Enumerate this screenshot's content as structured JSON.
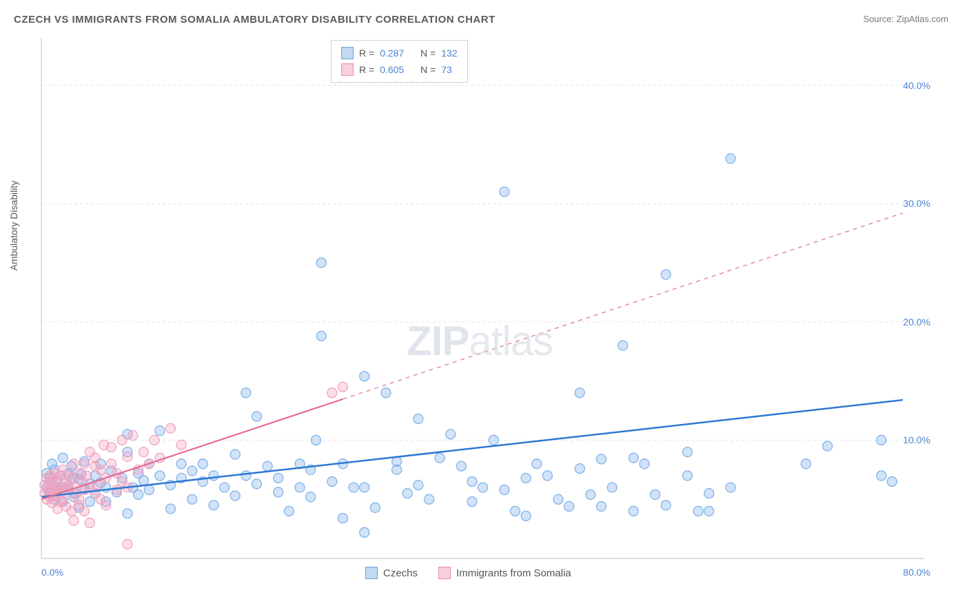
{
  "title": "CZECH VS IMMIGRANTS FROM SOMALIA AMBULATORY DISABILITY CORRELATION CHART",
  "source": "Source: ZipAtlas.com",
  "y_axis_label": "Ambulatory Disability",
  "watermark_bold": "ZIP",
  "watermark_rest": "atlas",
  "chart": {
    "type": "scatter",
    "background_color": "#ffffff",
    "grid_color": "#e3e3e3",
    "axis_color": "#cccccc",
    "xlim": [
      0,
      80
    ],
    "ylim": [
      0,
      44
    ],
    "x_tick_labels": [
      {
        "v": 0,
        "t": "0.0%"
      },
      {
        "v": 80,
        "t": "80.0%"
      }
    ],
    "y_tick_labels": [
      {
        "v": 10,
        "t": "10.0%"
      },
      {
        "v": 20,
        "t": "20.0%"
      },
      {
        "v": 30,
        "t": "30.0%"
      },
      {
        "v": 40,
        "t": "40.0%"
      }
    ],
    "y_grid_values": [
      10,
      20,
      30,
      40
    ],
    "tick_label_color": "#4a84d6",
    "tick_fontsize": 14,
    "marker_radius": 7,
    "marker_stroke_width": 1.2,
    "series": [
      {
        "name": "Czechs",
        "color_fill": "rgba(125,175,235,0.35)",
        "color_stroke": "#7aafe8",
        "trend_color": "#2e78d2",
        "trend_width": 2.5,
        "R": "0.287",
        "N": "132",
        "trend": {
          "x1": 0,
          "y1": 5.2,
          "x2": 80,
          "y2": 13.4,
          "dashed_after_x": null
        },
        "points": [
          [
            0.5,
            6.0
          ],
          [
            0.5,
            7.2
          ],
          [
            0.8,
            5.5
          ],
          [
            0.8,
            6.8
          ],
          [
            1.0,
            6.2
          ],
          [
            1.0,
            8.0
          ],
          [
            1.2,
            5.0
          ],
          [
            1.2,
            7.5
          ],
          [
            1.5,
            6.5
          ],
          [
            1.5,
            5.8
          ],
          [
            1.8,
            7.0
          ],
          [
            1.8,
            6.0
          ],
          [
            2.0,
            8.5
          ],
          [
            2.0,
            4.8
          ],
          [
            2.2,
            5.8
          ],
          [
            2.5,
            7.2
          ],
          [
            2.5,
            6.0
          ],
          [
            2.8,
            7.8
          ],
          [
            3.0,
            5.2
          ],
          [
            3.0,
            6.8
          ],
          [
            3.2,
            5.5
          ],
          [
            3.5,
            4.3
          ],
          [
            3.5,
            6.7
          ],
          [
            3.7,
            7.1
          ],
          [
            4.0,
            8.2
          ],
          [
            4.0,
            5.9
          ],
          [
            4.5,
            6.3
          ],
          [
            4.5,
            4.8
          ],
          [
            5.0,
            7.0
          ],
          [
            5.0,
            5.5
          ],
          [
            5.5,
            6.4
          ],
          [
            5.5,
            8.0
          ],
          [
            6.0,
            4.8
          ],
          [
            6.0,
            6.0
          ],
          [
            6.5,
            7.4
          ],
          [
            7.0,
            5.6
          ],
          [
            7.5,
            6.8
          ],
          [
            8.0,
            3.8
          ],
          [
            8.0,
            9.0
          ],
          [
            8.0,
            10.5
          ],
          [
            8.5,
            6.0
          ],
          [
            9.0,
            7.2
          ],
          [
            9.0,
            5.4
          ],
          [
            9.5,
            6.6
          ],
          [
            10.0,
            8.0
          ],
          [
            10.0,
            5.8
          ],
          [
            11.0,
            7.0
          ],
          [
            11.0,
            10.8
          ],
          [
            12.0,
            6.2
          ],
          [
            12.0,
            4.2
          ],
          [
            13.0,
            6.8
          ],
          [
            13.0,
            8.0
          ],
          [
            14.0,
            7.4
          ],
          [
            14.0,
            5.0
          ],
          [
            15.0,
            8.0
          ],
          [
            15.0,
            6.5
          ],
          [
            16.0,
            4.5
          ],
          [
            16.0,
            7.0
          ],
          [
            17.0,
            6.0
          ],
          [
            18.0,
            8.8
          ],
          [
            18.0,
            5.3
          ],
          [
            19.0,
            7.0
          ],
          [
            19.0,
            14.0
          ],
          [
            20.0,
            6.3
          ],
          [
            20.0,
            12.0
          ],
          [
            21.0,
            7.8
          ],
          [
            22.0,
            5.6
          ],
          [
            22.0,
            6.8
          ],
          [
            23.0,
            4.0
          ],
          [
            24.0,
            6.0
          ],
          [
            24.0,
            8.0
          ],
          [
            25.0,
            5.2
          ],
          [
            25.0,
            7.5
          ],
          [
            25.5,
            10.0
          ],
          [
            26.0,
            18.8
          ],
          [
            26.0,
            25.0
          ],
          [
            27.0,
            6.5
          ],
          [
            28.0,
            3.4
          ],
          [
            28.0,
            8.0
          ],
          [
            29.0,
            6.0
          ],
          [
            30.0,
            6.0
          ],
          [
            30.0,
            15.4
          ],
          [
            30.0,
            2.2
          ],
          [
            31.0,
            4.3
          ],
          [
            32.0,
            14.0
          ],
          [
            33.0,
            7.5
          ],
          [
            33.0,
            8.2
          ],
          [
            34.0,
            5.5
          ],
          [
            35.0,
            6.2
          ],
          [
            35.0,
            11.8
          ],
          [
            36.0,
            5.0
          ],
          [
            37.0,
            8.5
          ],
          [
            38.0,
            10.5
          ],
          [
            39.0,
            7.8
          ],
          [
            40.0,
            4.8
          ],
          [
            40.0,
            6.5
          ],
          [
            41.0,
            6.0
          ],
          [
            42.0,
            10.0
          ],
          [
            43.0,
            31.0
          ],
          [
            43.0,
            5.8
          ],
          [
            44.0,
            4.0
          ],
          [
            45.0,
            6.8
          ],
          [
            45.0,
            3.6
          ],
          [
            46.0,
            8.0
          ],
          [
            47.0,
            7.0
          ],
          [
            48.0,
            5.0
          ],
          [
            49.0,
            4.4
          ],
          [
            50.0,
            7.6
          ],
          [
            50.0,
            14.0
          ],
          [
            51.0,
            5.4
          ],
          [
            52.0,
            8.4
          ],
          [
            52.0,
            4.4
          ],
          [
            53.0,
            6.0
          ],
          [
            54.0,
            18.0
          ],
          [
            55.0,
            4.0
          ],
          [
            55.0,
            8.5
          ],
          [
            56.0,
            8.0
          ],
          [
            57.0,
            5.4
          ],
          [
            58.0,
            24.0
          ],
          [
            58.0,
            4.5
          ],
          [
            60.0,
            7.0
          ],
          [
            60.0,
            9.0
          ],
          [
            61.0,
            4.0
          ],
          [
            62.0,
            5.5
          ],
          [
            62.0,
            4.0
          ],
          [
            64.0,
            33.8
          ],
          [
            64.0,
            6.0
          ],
          [
            73.0,
            9.5
          ],
          [
            71.0,
            8.0
          ],
          [
            78.0,
            7.0
          ],
          [
            78.0,
            10.0
          ],
          [
            79.0,
            6.5
          ]
        ]
      },
      {
        "name": "Immigrants from Somalia",
        "color_fill": "rgba(245,160,190,0.35)",
        "color_stroke": "#f0a0bc",
        "trend_color": "#e56c94",
        "trend_width": 2.2,
        "R": "0.605",
        "N": "73",
        "trend": {
          "x1": 0,
          "y1": 5.0,
          "x2": 80,
          "y2": 29.2,
          "dashed_after_x": 28
        },
        "points": [
          [
            0.3,
            5.5
          ],
          [
            0.3,
            6.2
          ],
          [
            0.5,
            5.0
          ],
          [
            0.5,
            6.8
          ],
          [
            0.6,
            5.8
          ],
          [
            0.7,
            6.3
          ],
          [
            0.8,
            5.2
          ],
          [
            0.8,
            7.0
          ],
          [
            1.0,
            5.8
          ],
          [
            1.0,
            4.7
          ],
          [
            1.0,
            6.5
          ],
          [
            1.2,
            5.3
          ],
          [
            1.2,
            7.2
          ],
          [
            1.3,
            6.0
          ],
          [
            1.5,
            4.2
          ],
          [
            1.5,
            5.8
          ],
          [
            1.5,
            6.8
          ],
          [
            1.7,
            5.5
          ],
          [
            1.8,
            7.0
          ],
          [
            1.8,
            4.8
          ],
          [
            2.0,
            6.0
          ],
          [
            2.0,
            5.0
          ],
          [
            2.0,
            7.5
          ],
          [
            2.2,
            6.3
          ],
          [
            2.3,
            4.4
          ],
          [
            2.5,
            5.8
          ],
          [
            2.5,
            7.0
          ],
          [
            2.5,
            6.2
          ],
          [
            2.8,
            4.0
          ],
          [
            2.8,
            6.8
          ],
          [
            3.0,
            5.5
          ],
          [
            3.0,
            8.0
          ],
          [
            3.0,
            3.2
          ],
          [
            3.2,
            6.0
          ],
          [
            3.5,
            7.2
          ],
          [
            3.5,
            5.0
          ],
          [
            3.5,
            4.5
          ],
          [
            3.8,
            6.5
          ],
          [
            4.0,
            8.0
          ],
          [
            4.0,
            5.8
          ],
          [
            4.0,
            4.0
          ],
          [
            4.2,
            7.0
          ],
          [
            4.5,
            6.0
          ],
          [
            4.5,
            9.0
          ],
          [
            4.5,
            3.0
          ],
          [
            5.0,
            5.5
          ],
          [
            5.0,
            7.8
          ],
          [
            5.0,
            8.5
          ],
          [
            5.2,
            6.2
          ],
          [
            5.5,
            7.5
          ],
          [
            5.5,
            5.0
          ],
          [
            5.8,
            9.6
          ],
          [
            6.0,
            6.8
          ],
          [
            6.0,
            4.5
          ],
          [
            6.5,
            8.0
          ],
          [
            6.5,
            9.4
          ],
          [
            7.0,
            7.2
          ],
          [
            7.0,
            5.8
          ],
          [
            7.5,
            6.5
          ],
          [
            7.5,
            10.0
          ],
          [
            8.0,
            8.6
          ],
          [
            8.0,
            6.0
          ],
          [
            8.5,
            10.4
          ],
          [
            9.0,
            7.5
          ],
          [
            9.5,
            9.0
          ],
          [
            8.0,
            1.2
          ],
          [
            10.0,
            8.0
          ],
          [
            10.5,
            10.0
          ],
          [
            11.0,
            8.5
          ],
          [
            12.0,
            11.0
          ],
          [
            13.0,
            9.6
          ],
          [
            28.0,
            14.5
          ],
          [
            27.0,
            14.0
          ]
        ]
      }
    ]
  },
  "legend_top_rows": [
    {
      "swatch": "blue",
      "r": "0.287",
      "n": "132"
    },
    {
      "swatch": "pink",
      "r": "0.605",
      "n": "73"
    }
  ],
  "legend_bottom": [
    {
      "swatch": "blue",
      "label": "Czechs"
    },
    {
      "swatch": "pink",
      "label": "Immigrants from Somalia"
    }
  ],
  "labels": {
    "R_prefix": "R =",
    "N_prefix": "N ="
  }
}
